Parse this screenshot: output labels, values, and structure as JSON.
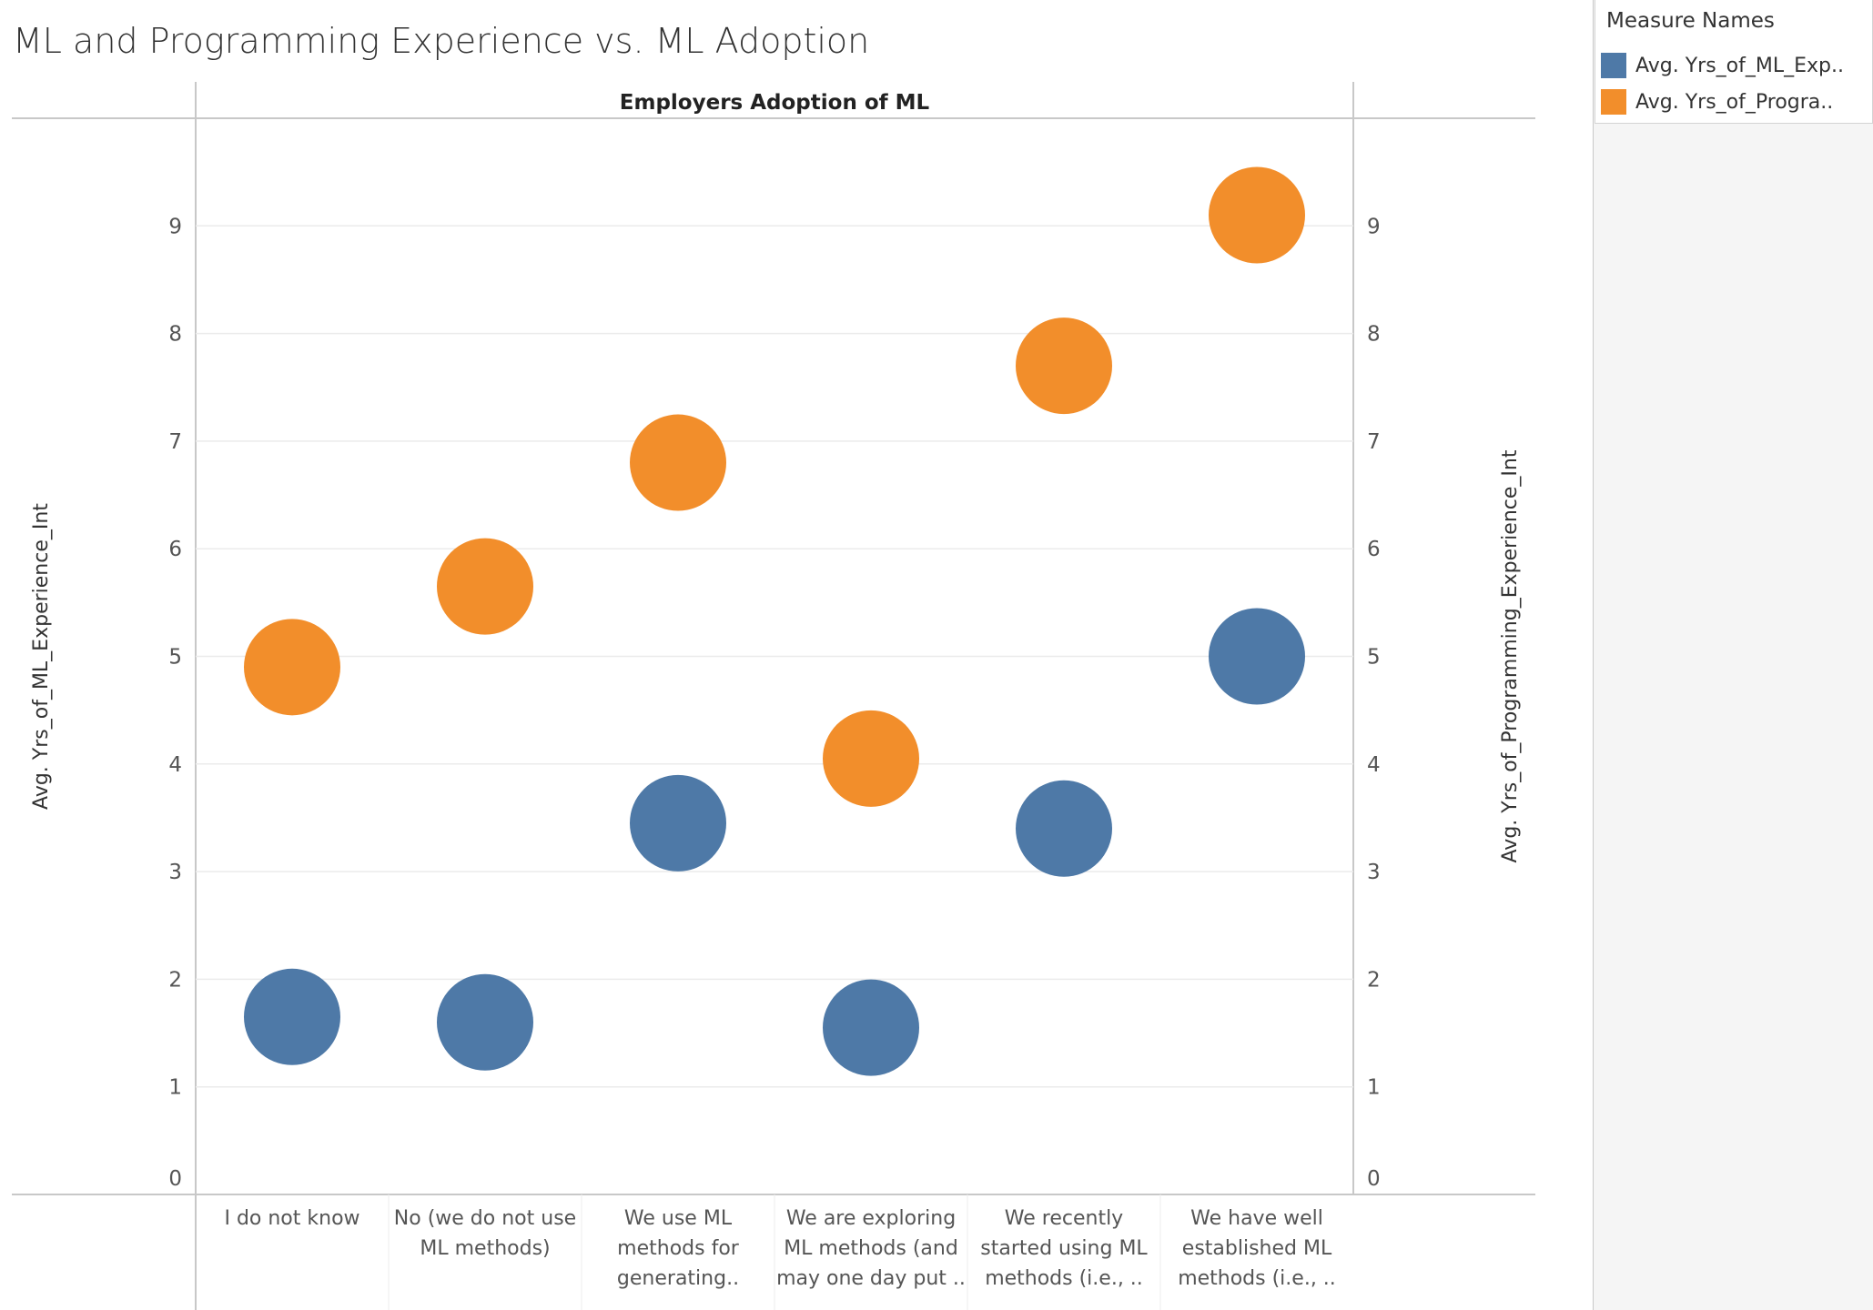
{
  "title": "ML and Programming Experience vs. ML Adoption",
  "legend": {
    "title": "Measure Names",
    "items": [
      {
        "label": "Avg. Yrs_of_ML_Exp..",
        "color": "#4e79a7"
      },
      {
        "label": "Avg. Yrs_of_Progra..",
        "color": "#f28e2b"
      }
    ]
  },
  "chart_data": {
    "type": "scatter",
    "title": "ML and Programming Experience vs. ML Adoption",
    "column_header": "Employers Adoption of ML",
    "categories": [
      [
        "I do not know"
      ],
      [
        "No (we do not use",
        "ML methods)"
      ],
      [
        "We use ML",
        "methods for",
        "generating.."
      ],
      [
        "We are exploring",
        "ML methods (and",
        "may one day put .."
      ],
      [
        "We recently",
        "started using ML",
        "methods (i.e., .."
      ],
      [
        "We have well",
        "established ML",
        "methods (i.e., .."
      ]
    ],
    "ylabel_left": "Avg. Yrs_of_ML_Experience_Int",
    "ylabel_right": "Avg. Yrs_of_Programming_Experience_Int",
    "ylim": [
      0,
      10
    ],
    "yticks": [
      0,
      1,
      2,
      3,
      4,
      5,
      6,
      7,
      8,
      9
    ],
    "grid": true,
    "legend_position": "top-right",
    "series": [
      {
        "name": "Avg. Yrs_of_ML_Exp..",
        "color": "#4e79a7",
        "values": [
          1.65,
          1.6,
          3.45,
          1.55,
          3.4,
          5.0
        ]
      },
      {
        "name": "Avg. Yrs_of_Progra..",
        "color": "#f28e2b",
        "values": [
          4.9,
          5.65,
          6.8,
          4.05,
          7.7,
          9.1
        ]
      }
    ]
  }
}
